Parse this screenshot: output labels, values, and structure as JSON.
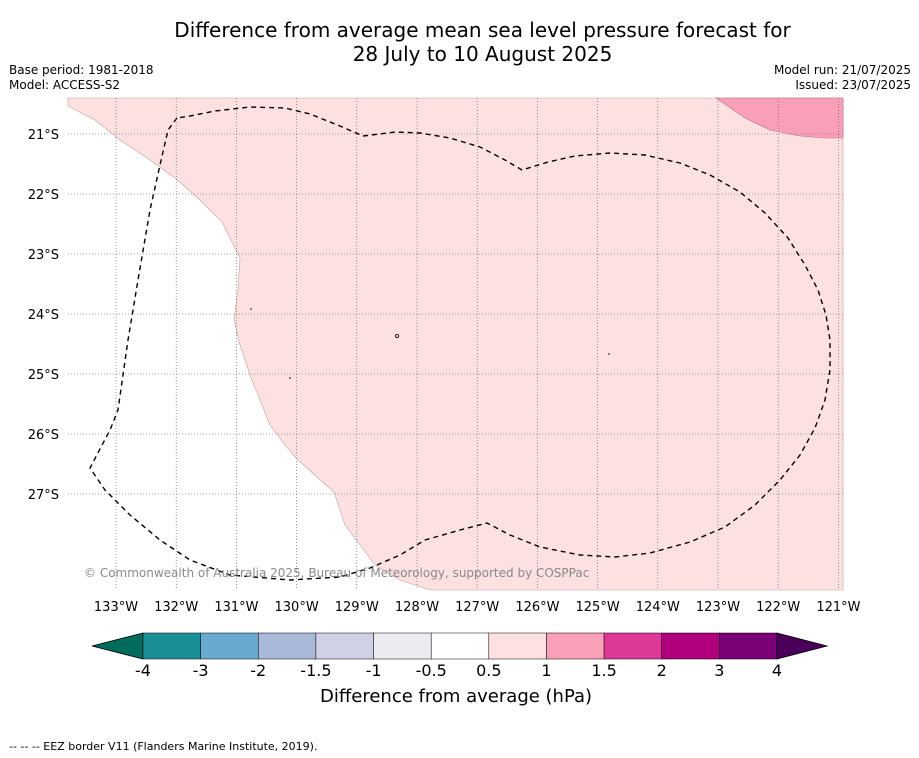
{
  "title_line1": "Difference from average mean sea level pressure forecast for",
  "title_line2": "28 July to 10 August 2025",
  "base_period": "Base period: 1981-2018",
  "model": "Model: ACCESS-S2",
  "model_run": "Model run: 21/07/2025",
  "issued": "Issued: 23/07/2025",
  "copyright": "© Commonwealth of Australia 2025, Bureau of Meteorology, supported by COSPPac",
  "colorbar_label": "Difference from average (hPa)",
  "footer_note": "-- -- -- EEZ border V11 (Flanders Marine Institute, 2019).",
  "map": {
    "lon_labels": [
      "133°W",
      "132°W",
      "131°W",
      "130°W",
      "129°W",
      "128°W",
      "127°W",
      "126°W",
      "125°W",
      "124°W",
      "123°W",
      "122°W",
      "121°W"
    ],
    "lat_labels": [
      "21°S",
      "22°S",
      "23°S",
      "24°S",
      "25°S",
      "26°S",
      "27°S"
    ],
    "colors": {
      "anomaly_0_5_to_1": "#fde0e0",
      "anomaly_1_to_1_5": "#f9a0b8",
      "no_anomaly": "#ffffff",
      "grid": "#555555",
      "eez_border": "#000000"
    }
  },
  "colorbar": {
    "tick_labels": [
      "-4",
      "-3",
      "-2",
      "-1.5",
      "-1",
      "-0.5",
      "0.5",
      "1",
      "1.5",
      "2",
      "3",
      "4"
    ],
    "bins": [
      {
        "color": "#1a9096"
      },
      {
        "color": "#68aacf"
      },
      {
        "color": "#a8b9d9"
      },
      {
        "color": "#d0d0e6"
      },
      {
        "color": "#ecebf0"
      },
      {
        "color": "#ffffff"
      },
      {
        "color": "#fde0e0"
      },
      {
        "color": "#f9a0b8"
      },
      {
        "color": "#de3898"
      },
      {
        "color": "#b0007e"
      },
      {
        "color": "#7a0078"
      }
    ],
    "under_color": "#006c5c",
    "over_color": "#4a005a"
  }
}
